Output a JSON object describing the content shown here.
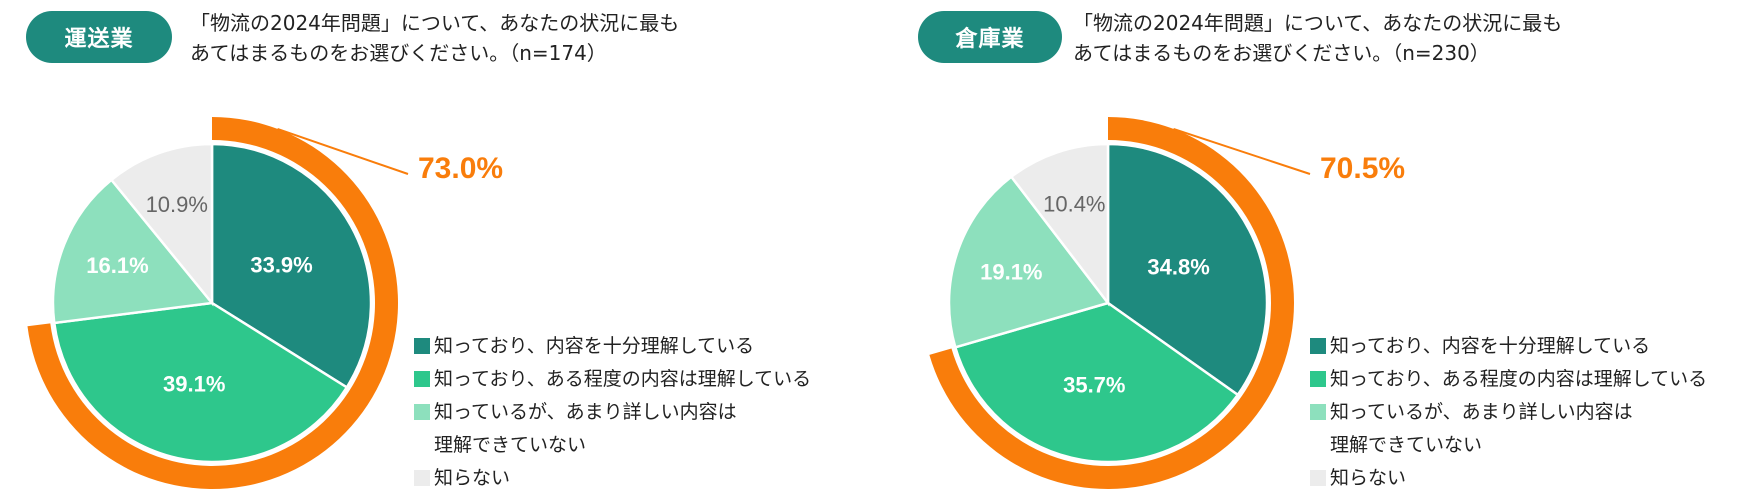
{
  "legend_labels": [
    "知っており、内容を十分理解している",
    "知っており、ある程度の内容は理解している",
    "知っているが、あまり詳しい内容は\n理解できていない",
    "知らない"
  ],
  "colors": {
    "badge": "#1e8a7e",
    "slice": [
      "#1e8a7e",
      "#2ec78c",
      "#8de0bd",
      "#ececec"
    ],
    "ring": "#f97d0b",
    "total_label": "#f97d0b",
    "label_light": "#ffffff",
    "label_dark": "#666666"
  },
  "panels": [
    {
      "industry": "運送業",
      "question_line1": "「物流の2024年問題」について、あなたの状況に最も",
      "question_line2": "あてはまるものをお選びください。（n=174）",
      "total_label": "73.0%"
    },
    {
      "industry": "倉庫業",
      "question_line1": "「物流の2024年問題」について、あなたの状況に最も",
      "question_line2": "あてはまるものをお選びください。（n=230）",
      "total_label": "70.5%"
    }
  ],
  "chart_data": [
    {
      "type": "pie",
      "title": "「物流の2024年問題」について、あなたの状況に最もあてはまるものをお選びください。（n=174）",
      "categories": [
        "知っており、内容を十分理解している",
        "知っており、ある程度の内容は理解している",
        "知っているが、あまり詳しい内容は理解できていない",
        "知らない"
      ],
      "values": [
        33.9,
        39.1,
        16.1,
        10.9
      ],
      "value_labels": [
        "33.9%",
        "39.1%",
        "16.1%",
        "10.9%"
      ],
      "highlight_total": 73.0,
      "highlight_categories": [
        "知っており、内容を十分理解している",
        "知っており、ある程度の内容は理解している"
      ],
      "legend_placement": "right"
    },
    {
      "type": "pie",
      "title": "「物流の2024年問題」について、あなたの状況に最もあてはまるものをお選びください。（n=230）",
      "categories": [
        "知っており、内容を十分理解している",
        "知っており、ある程度の内容は理解している",
        "知っているが、あまり詳しい内容は理解できていない",
        "知らない"
      ],
      "values": [
        34.8,
        35.7,
        19.1,
        10.4
      ],
      "value_labels": [
        "34.8%",
        "35.7%",
        "19.1%",
        "10.4%"
      ],
      "highlight_total": 70.5,
      "highlight_categories": [
        "知っており、内容を十分理解している",
        "知っており、ある程度の内容は理解している"
      ],
      "legend_placement": "right"
    }
  ]
}
